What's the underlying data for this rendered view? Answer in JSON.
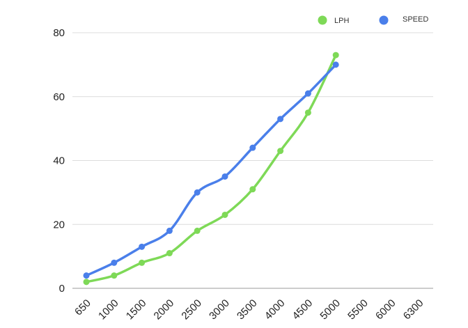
{
  "chart_data": {
    "type": "line",
    "categories": [
      "650",
      "1000",
      "1500",
      "2000",
      "2500",
      "3000",
      "3500",
      "4000",
      "4500",
      "5000",
      "5500",
      "6000",
      "6300"
    ],
    "series": [
      {
        "name": "LPH",
        "color": "#7ed957",
        "values": [
          2,
          4,
          8,
          11,
          18,
          23,
          31,
          43,
          55,
          73,
          null,
          null,
          null
        ]
      },
      {
        "name": "SPEED",
        "color": "#4a7fea",
        "values": [
          4,
          8,
          13,
          18,
          30,
          35,
          44,
          53,
          61,
          70,
          null,
          null,
          null
        ]
      }
    ],
    "ylim": [
      0,
      80
    ],
    "yticks": [
      0,
      20,
      40,
      60,
      80
    ],
    "grid": true,
    "legend_position": "top-right"
  }
}
